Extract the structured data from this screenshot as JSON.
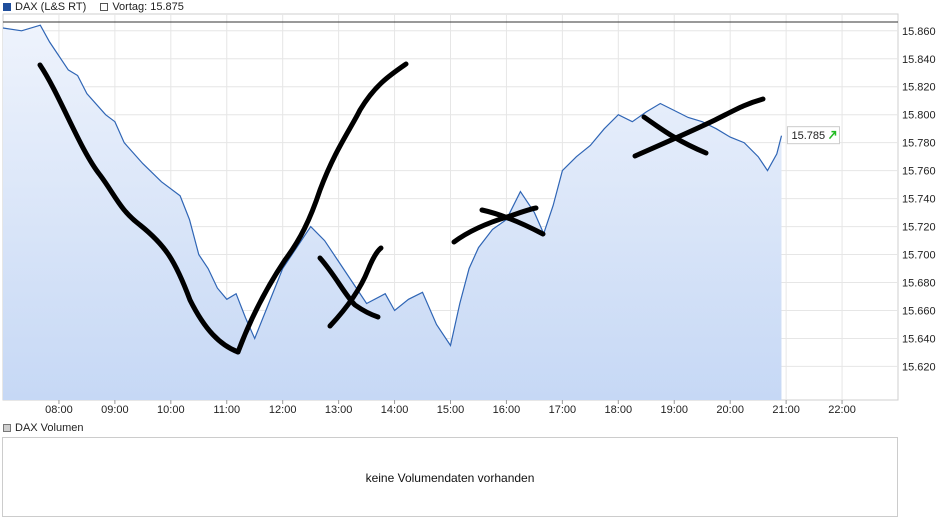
{
  "legend": {
    "series_label": "DAX (L&S RT)",
    "prev_label": "Vortag: 15.875",
    "series_color": "#1f4e9c"
  },
  "current_value_label": "15.785",
  "volume": {
    "legend_label": "DAX Volumen",
    "message": "keine Volumendaten vorhanden"
  },
  "chart_data": {
    "type": "area",
    "title": "",
    "xlabel": "",
    "ylabel": "",
    "x_ticks": [
      "08:00",
      "09:00",
      "10:00",
      "11:00",
      "12:00",
      "13:00",
      "14:00",
      "15:00",
      "16:00",
      "17:00",
      "18:00",
      "19:00",
      "20:00",
      "21:00",
      "22:00"
    ],
    "y_ticks": [
      "15.620",
      "15.640",
      "15.660",
      "15.680",
      "15.700",
      "15.720",
      "15.740",
      "15.760",
      "15.780",
      "15.800",
      "15.820",
      "15.840",
      "15.860"
    ],
    "ylim": [
      15.596,
      15.872
    ],
    "xlim": [
      "07:00",
      "23:00"
    ],
    "grid": true,
    "reference_line": 15.875,
    "series": [
      {
        "name": "DAX (L&S RT)",
        "line_color": "#2f65b5",
        "fill_color": "#c6d8f5",
        "x": [
          "07:00",
          "07:20",
          "07:40",
          "07:50",
          "08:10",
          "08:20",
          "08:30",
          "08:50",
          "09:00",
          "09:10",
          "09:30",
          "09:50",
          "10:10",
          "10:20",
          "10:30",
          "10:40",
          "10:50",
          "11:00",
          "11:10",
          "11:20",
          "11:30",
          "11:45",
          "12:00",
          "12:15",
          "12:30",
          "12:45",
          "13:00",
          "13:15",
          "13:30",
          "13:50",
          "14:00",
          "14:15",
          "14:30",
          "14:45",
          "15:00",
          "15:10",
          "15:20",
          "15:30",
          "15:45",
          "16:00",
          "16:15",
          "16:30",
          "16:40",
          "16:50",
          "17:00",
          "17:15",
          "17:30",
          "17:45",
          "18:00",
          "18:15",
          "18:30",
          "18:45",
          "19:00",
          "19:15",
          "19:30",
          "19:45",
          "20:00",
          "20:15",
          "20:30",
          "20:40",
          "20:50",
          "20:55"
        ],
        "values": [
          15.862,
          15.86,
          15.864,
          15.852,
          15.832,
          15.828,
          15.815,
          15.8,
          15.795,
          15.78,
          15.765,
          15.752,
          15.742,
          15.725,
          15.7,
          15.69,
          15.676,
          15.668,
          15.672,
          15.655,
          15.64,
          15.665,
          15.69,
          15.705,
          15.72,
          15.71,
          15.695,
          15.68,
          15.665,
          15.672,
          15.66,
          15.668,
          15.673,
          15.65,
          15.635,
          15.665,
          15.69,
          15.705,
          15.718,
          15.725,
          15.745,
          15.73,
          15.715,
          15.735,
          15.76,
          15.77,
          15.778,
          15.79,
          15.8,
          15.795,
          15.802,
          15.808,
          15.803,
          15.798,
          15.795,
          15.79,
          15.784,
          15.78,
          15.77,
          15.76,
          15.772,
          15.785
        ]
      }
    ],
    "annotations": {
      "type": "hand-drawn strokes",
      "color": "#000000"
    }
  }
}
